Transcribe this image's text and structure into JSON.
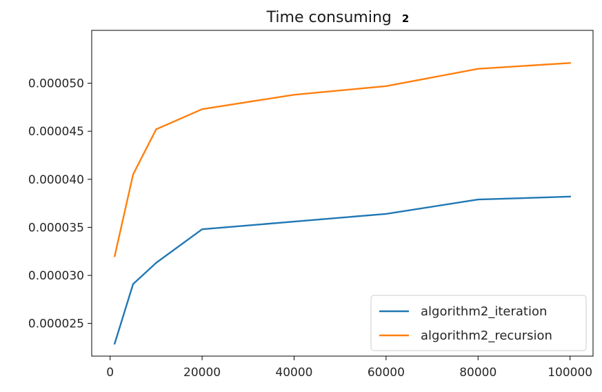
{
  "chart_data": {
    "type": "line",
    "title": "Time consuming",
    "title_suffix": "2",
    "xlabel": "",
    "ylabel": "",
    "x": [
      1000,
      5000,
      10000,
      20000,
      40000,
      60000,
      80000,
      100000
    ],
    "series": [
      {
        "name": "algorithm2_iteration",
        "color": "#1f77b4",
        "values": [
          2.29e-05,
          2.91e-05,
          3.13e-05,
          3.48e-05,
          3.56e-05,
          3.64e-05,
          3.79e-05,
          3.82e-05
        ]
      },
      {
        "name": "algorithm2_recursion",
        "color": "#ff7f0e",
        "values": [
          3.2e-05,
          4.05e-05,
          4.52e-05,
          4.73e-05,
          4.88e-05,
          4.97e-05,
          5.15e-05,
          5.21e-05
        ]
      }
    ],
    "xlim": [
      -4000,
      105000
    ],
    "ylim": [
      2.16e-05,
      5.55e-05
    ],
    "xticks": [
      0,
      20000,
      40000,
      60000,
      80000,
      100000
    ],
    "xtick_labels": [
      "0",
      "20000",
      "40000",
      "60000",
      "80000",
      "100000"
    ],
    "yticks": [
      2.5e-05,
      3e-05,
      3.5e-05,
      4e-05,
      4.5e-05,
      5e-05
    ],
    "ytick_labels": [
      "0.000025",
      "0.000030",
      "0.000035",
      "0.000040",
      "0.000045",
      "0.000050"
    ],
    "grid": false,
    "legend_position": "lower-right"
  }
}
